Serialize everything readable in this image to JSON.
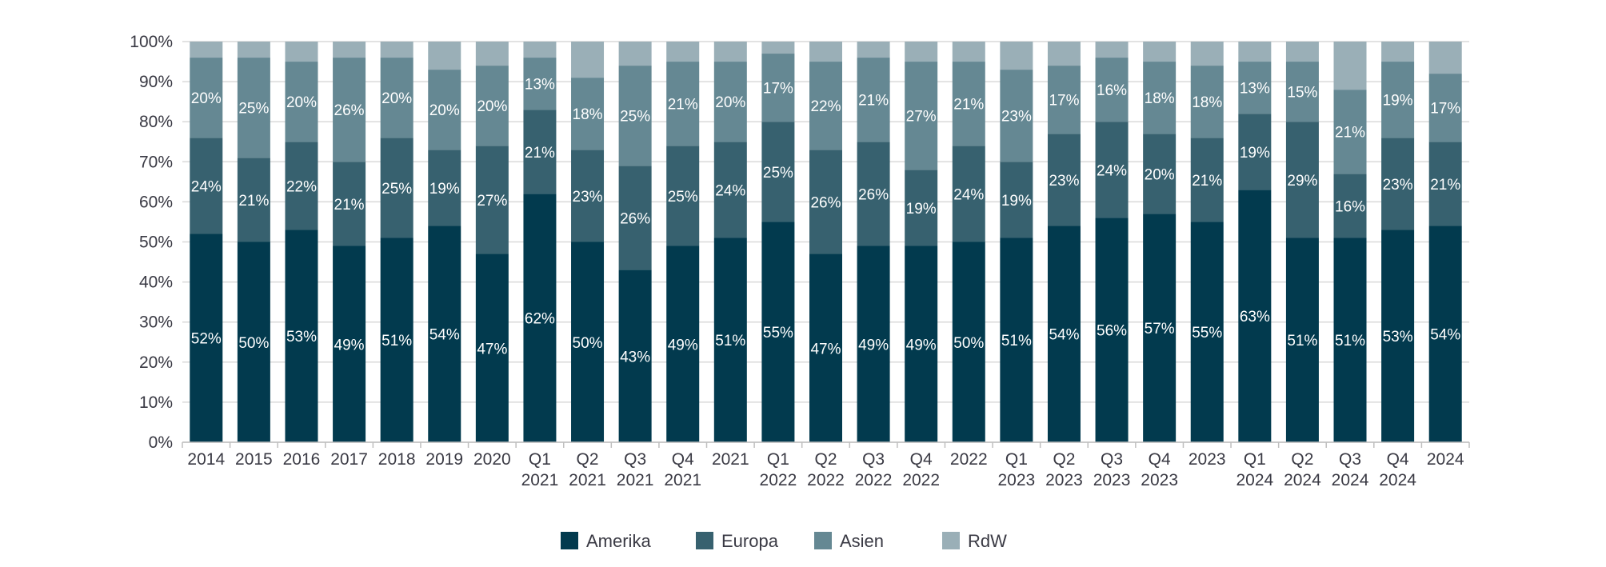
{
  "chart_data": {
    "type": "bar",
    "stacked": true,
    "percent": true,
    "title": "",
    "xlabel": "",
    "ylabel": "",
    "ylim": [
      0,
      100
    ],
    "y_ticks": [
      "0%",
      "10%",
      "20%",
      "30%",
      "40%",
      "50%",
      "60%",
      "70%",
      "80%",
      "90%",
      "100%"
    ],
    "grid": true,
    "legend_position": "bottom",
    "categories": [
      [
        "2014"
      ],
      [
        "2015"
      ],
      [
        "2016"
      ],
      [
        "2017"
      ],
      [
        "2018"
      ],
      [
        "2019"
      ],
      [
        "2020"
      ],
      [
        "Q1",
        "2021"
      ],
      [
        "Q2",
        "2021"
      ],
      [
        "Q3",
        "2021"
      ],
      [
        "Q4",
        "2021"
      ],
      [
        "2021"
      ],
      [
        "Q1",
        "2022"
      ],
      [
        "Q2",
        "2022"
      ],
      [
        "Q3",
        "2022"
      ],
      [
        "Q4",
        "2022"
      ],
      [
        "2022"
      ],
      [
        "Q1",
        "2023"
      ],
      [
        "Q2",
        "2023"
      ],
      [
        "Q3",
        "2023"
      ],
      [
        "Q4",
        "2023"
      ],
      [
        "2023"
      ],
      [
        "Q1",
        "2024"
      ],
      [
        "Q2",
        "2024"
      ],
      [
        "Q3",
        "2024"
      ],
      [
        "Q4",
        "2024"
      ],
      [
        "2024"
      ]
    ],
    "series": [
      {
        "name": "Amerika",
        "color": "#023a4e",
        "labeled": true,
        "values": [
          52,
          50,
          53,
          49,
          51,
          54,
          47,
          62,
          50,
          43,
          49,
          51,
          55,
          47,
          49,
          49,
          50,
          51,
          54,
          56,
          57,
          55,
          63,
          51,
          51,
          53,
          54
        ]
      },
      {
        "name": "Europa",
        "color": "#37616f",
        "labeled": true,
        "values": [
          24,
          21,
          22,
          21,
          25,
          19,
          27,
          21,
          23,
          26,
          25,
          24,
          25,
          26,
          26,
          19,
          24,
          19,
          23,
          24,
          20,
          21,
          19,
          29,
          16,
          23,
          21
        ]
      },
      {
        "name": "Asien",
        "color": "#658893",
        "labeled": true,
        "values": [
          20,
          25,
          20,
          26,
          20,
          20,
          20,
          13,
          18,
          25,
          21,
          20,
          17,
          22,
          21,
          27,
          21,
          23,
          17,
          16,
          18,
          18,
          13,
          15,
          21,
          19,
          17
        ]
      },
      {
        "name": "RdW",
        "color": "#9aafb7",
        "labeled": false,
        "values": [
          4,
          4,
          5,
          4,
          4,
          7,
          6,
          4,
          9,
          6,
          5,
          5,
          3,
          5,
          4,
          5,
          5,
          7,
          6,
          4,
          5,
          6,
          5,
          5,
          12,
          5,
          8
        ]
      }
    ]
  }
}
